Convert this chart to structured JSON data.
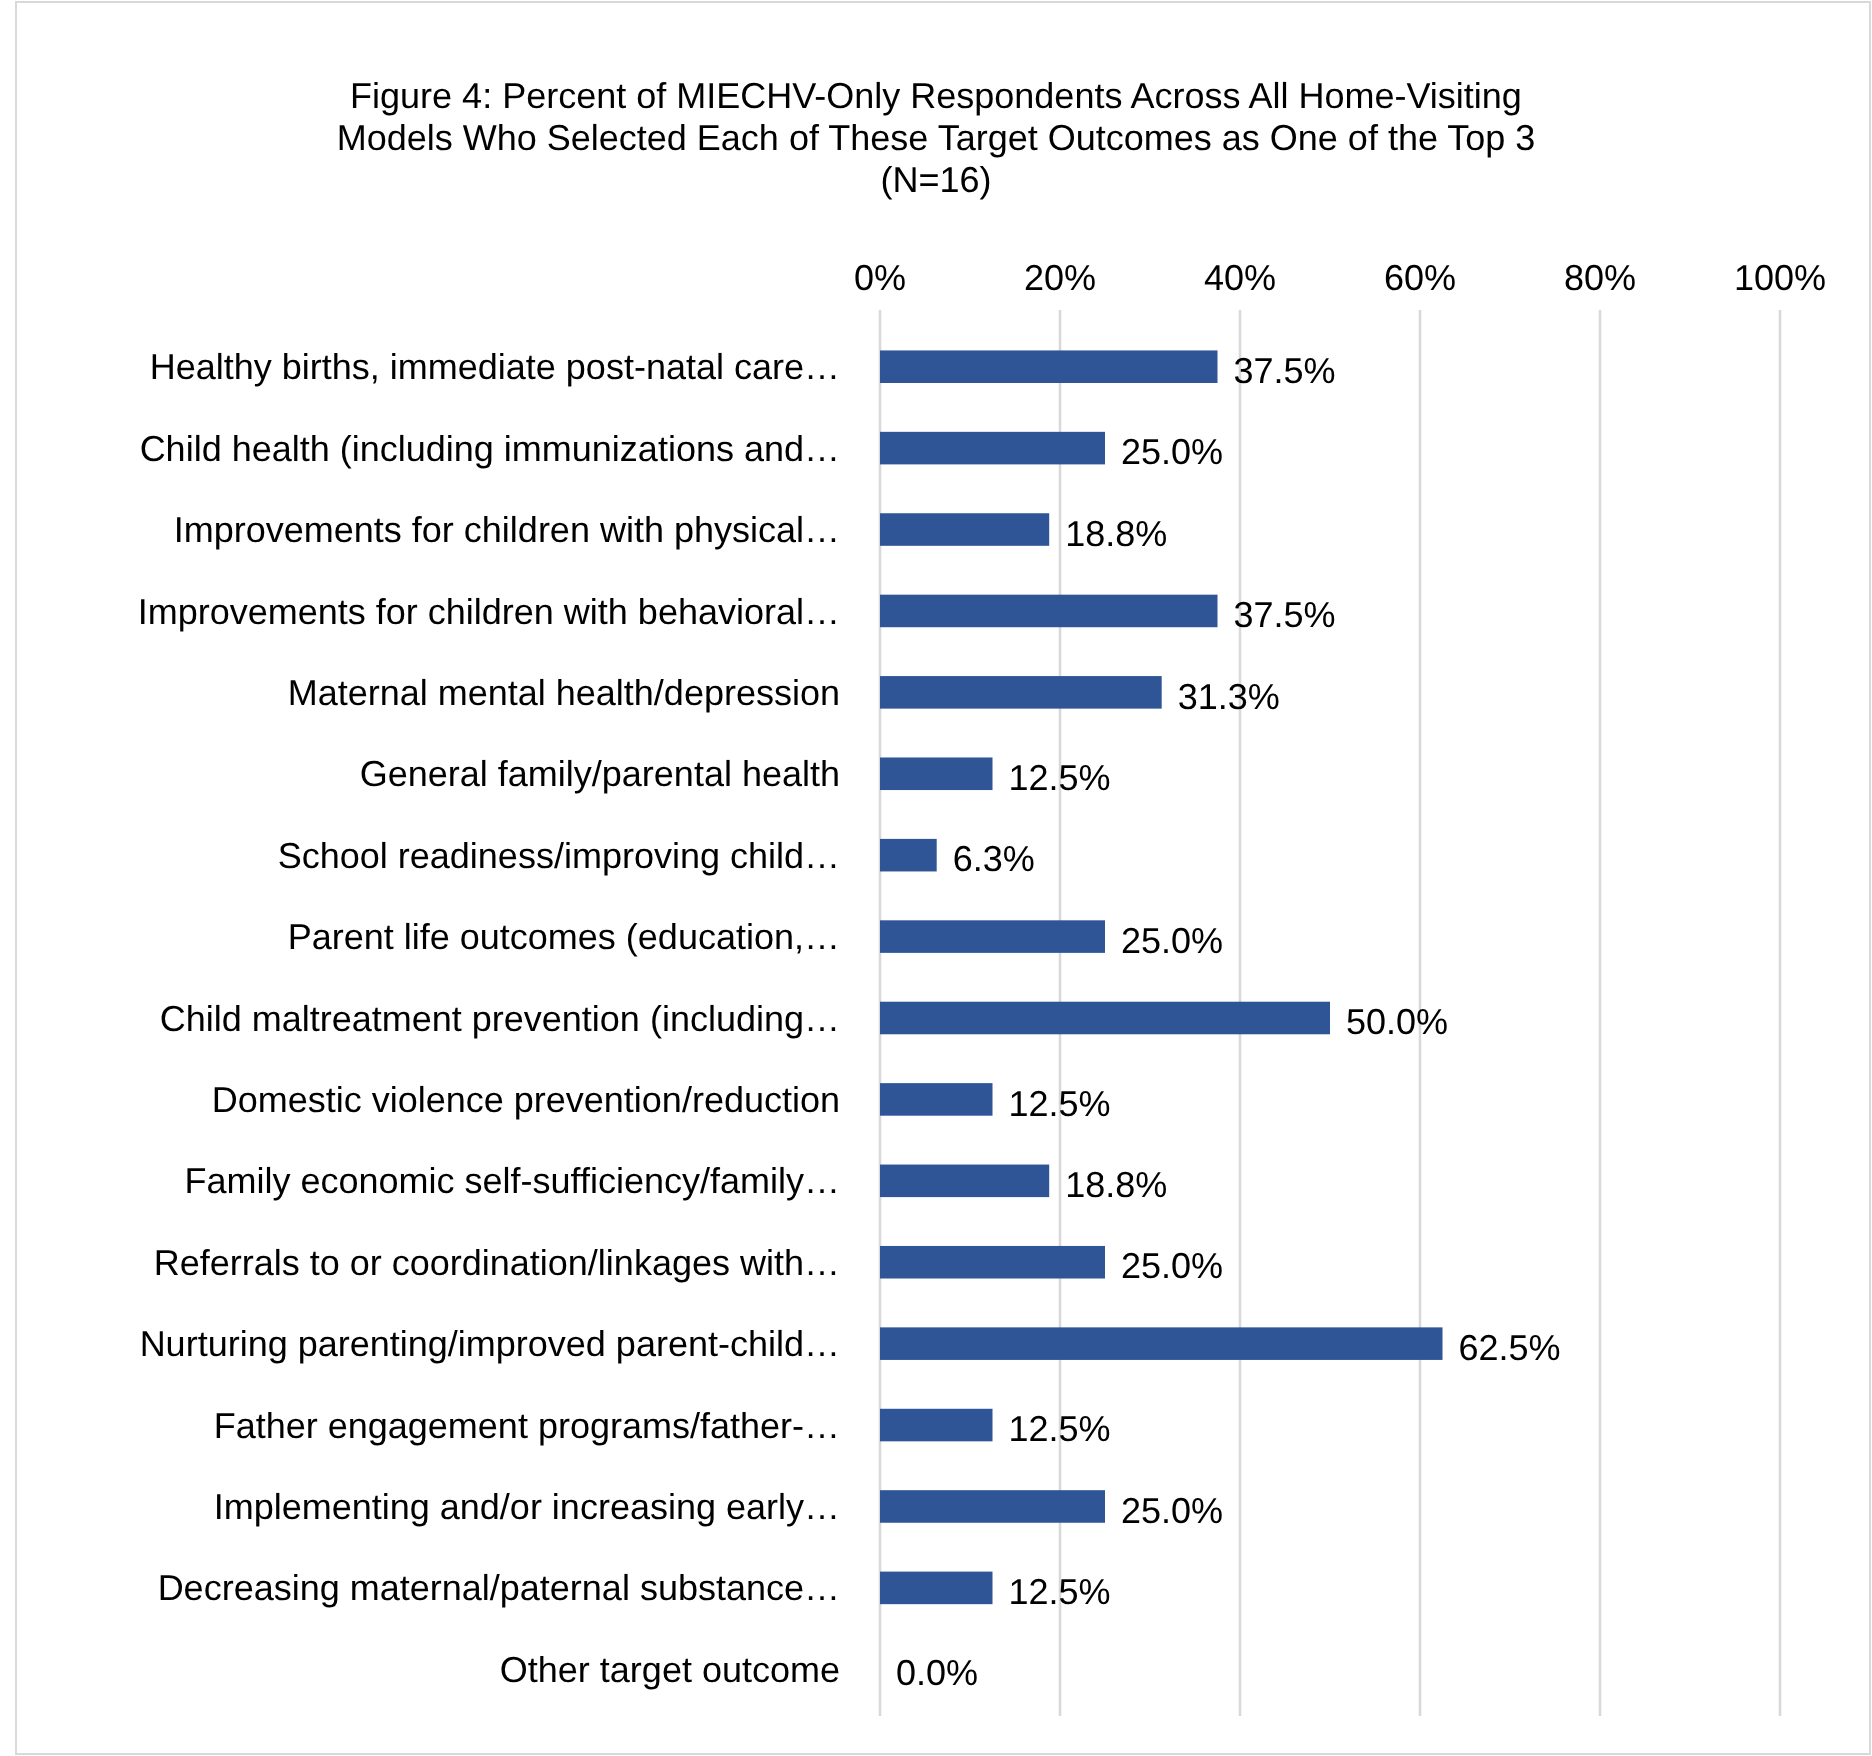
{
  "chart_data": {
    "type": "bar",
    "orientation": "horizontal",
    "title": "Figure 4: Percent of MIECHV-Only Respondents Across All Home-Visiting\nModels Who Selected Each of These Target Outcomes as One of the Top 3\n(N=16)",
    "categories": [
      "Healthy births, immediate post-natal care…",
      "Child health (including immunizations and…",
      "Improvements for children with physical…",
      "Improvements for children with behavioral…",
      "Maternal mental health/depression",
      "General family/parental health",
      "School readiness/improving child…",
      "Parent life outcomes (education,…",
      "Child maltreatment prevention (including…",
      "Domestic violence prevention/reduction",
      "Family economic self-sufficiency/family…",
      "Referrals to or coordination/linkages with…",
      "Nurturing parenting/improved parent-child…",
      "Father engagement programs/father-…",
      "Implementing and/or increasing early…",
      "Decreasing maternal/paternal substance…",
      "Other target outcome"
    ],
    "values": [
      37.5,
      25.0,
      18.8,
      37.5,
      31.3,
      12.5,
      6.3,
      25.0,
      50.0,
      12.5,
      18.8,
      25.0,
      62.5,
      12.5,
      25.0,
      12.5,
      0.0
    ],
    "value_labels": [
      "37.5%",
      "25.0%",
      "18.8%",
      "37.5%",
      "31.3%",
      "12.5%",
      "6.3%",
      "25.0%",
      "50.0%",
      "12.5%",
      "18.8%",
      "25.0%",
      "62.5%",
      "12.5%",
      "25.0%",
      "12.5%",
      "0.0%"
    ],
    "color": "#2f5597",
    "xlim": [
      0,
      100
    ],
    "xticks": [
      {
        "value": 0,
        "label": "0%"
      },
      {
        "value": 20,
        "label": "20%"
      },
      {
        "value": 40,
        "label": "40%"
      },
      {
        "value": 60,
        "label": "60%"
      },
      {
        "value": 80,
        "label": "80%"
      },
      {
        "value": 100,
        "label": "100%"
      }
    ],
    "grid": "x"
  }
}
